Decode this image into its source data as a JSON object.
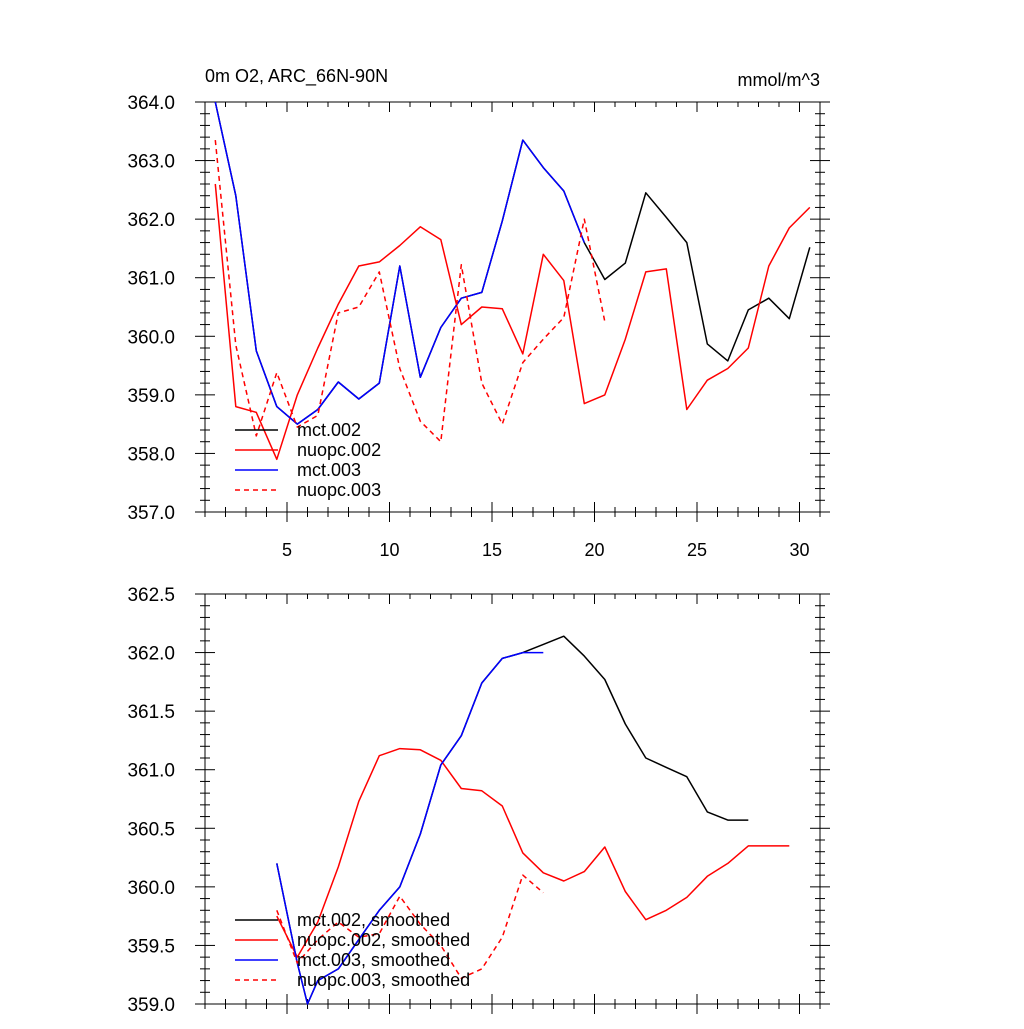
{
  "chart_data": [
    {
      "type": "line",
      "title": "0m O2, ARC_66N-90N",
      "unit_label": "mmol/m^3",
      "xlim": [
        1,
        31
      ],
      "ylim": [
        357.0,
        364.0
      ],
      "x_ticks": [
        5,
        10,
        15,
        20,
        25,
        30
      ],
      "y_ticks": [
        357.0,
        358.0,
        359.0,
        360.0,
        361.0,
        362.0,
        363.0,
        364.0
      ],
      "legend_position": "bottom-left",
      "series": [
        {
          "name": "mct.002",
          "color": "#000000",
          "dash": "solid",
          "x": [
            1.5,
            2.5,
            3.5,
            4.5,
            5.5,
            6.5,
            7.5,
            8.5,
            9.5,
            10.5,
            11.5,
            12.5,
            13.5,
            14.5,
            15.5,
            16.5,
            17.5,
            18.5,
            19.5,
            20.5,
            21.5,
            22.5,
            23.5,
            24.5,
            25.5,
            26.5,
            27.5,
            28.5,
            29.5,
            30.5
          ],
          "y": [
            364.0,
            362.4,
            359.75,
            358.8,
            358.5,
            358.75,
            359.22,
            358.93,
            359.2,
            361.2,
            359.3,
            360.15,
            360.65,
            360.75,
            361.97,
            363.35,
            362.88,
            362.48,
            361.6,
            360.97,
            361.25,
            362.45,
            362.03,
            361.6,
            359.87,
            359.58,
            360.45,
            360.65,
            360.3,
            361.52
          ]
        },
        {
          "name": "nuopc.002",
          "color": "#ff0000",
          "dash": "solid",
          "x": [
            1.5,
            2.5,
            3.5,
            4.5,
            5.5,
            6.5,
            7.5,
            8.5,
            9.5,
            10.5,
            11.5,
            12.5,
            13.5,
            14.5,
            15.5,
            16.5,
            17.5,
            18.5,
            19.5,
            20.5,
            21.5,
            22.5,
            23.5,
            24.5,
            25.5,
            26.5,
            27.5,
            28.5,
            29.5,
            30.5
          ],
          "y": [
            362.6,
            358.8,
            358.7,
            357.9,
            359.0,
            359.8,
            360.55,
            361.2,
            361.27,
            361.55,
            361.87,
            361.65,
            360.2,
            360.5,
            360.47,
            359.7,
            361.4,
            360.95,
            358.85,
            359.0,
            359.95,
            361.1,
            361.15,
            358.75,
            359.25,
            359.45,
            359.8,
            361.2,
            361.85,
            362.2
          ]
        },
        {
          "name": "mct.003",
          "color": "#0000ff",
          "dash": "solid",
          "x": [
            1.5,
            2.5,
            3.5,
            4.5,
            5.5,
            6.5,
            7.5,
            8.5,
            9.5,
            10.5,
            11.5,
            12.5,
            13.5,
            14.5,
            15.5,
            16.5,
            17.5,
            18.5,
            19.5
          ],
          "y": [
            364.0,
            362.4,
            359.75,
            358.8,
            358.5,
            358.75,
            359.22,
            358.93,
            359.2,
            361.2,
            359.3,
            360.15,
            360.65,
            360.75,
            361.97,
            363.35,
            362.88,
            362.48,
            361.6
          ]
        },
        {
          "name": "nuopc.003",
          "color": "#ff0000",
          "dash": "dashed",
          "x": [
            1.5,
            2.5,
            3.5,
            4.5,
            5.5,
            6.5,
            7.5,
            8.5,
            9.5,
            10.5,
            11.5,
            12.5,
            13.5,
            14.5,
            15.5,
            16.5,
            17.5,
            18.5,
            19.5,
            20.5
          ],
          "y": [
            363.35,
            359.85,
            358.3,
            359.38,
            358.45,
            358.65,
            360.4,
            360.5,
            361.1,
            359.45,
            358.55,
            358.2,
            361.22,
            359.2,
            358.5,
            359.55,
            359.95,
            360.32,
            362.0,
            360.25
          ]
        }
      ]
    },
    {
      "type": "line",
      "xlim": [
        1,
        31
      ],
      "ylim": [
        359.0,
        362.5
      ],
      "x_ticks": [
        5,
        10,
        15,
        20,
        25,
        30
      ],
      "y_ticks": [
        359.0,
        359.5,
        360.0,
        360.5,
        361.0,
        361.5,
        362.0,
        362.5
      ],
      "legend_position": "bottom-left",
      "series": [
        {
          "name": "mct.002, smoothed",
          "color": "#000000",
          "dash": "solid",
          "x": [
            4.5,
            5.5,
            6.0,
            6.5,
            7.5,
            8.5,
            9.5,
            10.5,
            11.5,
            12.5,
            13.5,
            14.5,
            15.5,
            16.5,
            17.5,
            18.5,
            19.5,
            20.5,
            21.5,
            22.5,
            23.5,
            24.5,
            25.5,
            26.5,
            27.5
          ],
          "y": [
            360.2,
            359.35,
            359.0,
            359.2,
            359.3,
            359.55,
            359.8,
            360.0,
            360.45,
            361.04,
            361.29,
            361.74,
            361.95,
            362.0,
            362.07,
            362.14,
            361.97,
            361.77,
            361.39,
            361.1,
            361.02,
            360.94,
            360.64,
            360.57,
            360.57
          ]
        },
        {
          "name": "nuopc.002, smoothed",
          "color": "#ff0000",
          "dash": "solid",
          "x": [
            4.5,
            5.5,
            6.5,
            7.5,
            8.5,
            9.5,
            10.5,
            11.5,
            12.5,
            13.5,
            14.5,
            15.5,
            16.5,
            17.5,
            18.5,
            19.5,
            20.5,
            21.5,
            22.5,
            23.5,
            24.5,
            25.5,
            26.5,
            27.5,
            28.5,
            29.5
          ],
          "y": [
            359.75,
            359.4,
            359.7,
            360.17,
            360.73,
            361.12,
            361.18,
            361.17,
            361.08,
            360.84,
            360.82,
            360.69,
            360.29,
            360.12,
            360.05,
            360.13,
            360.34,
            359.96,
            359.72,
            359.8,
            359.91,
            360.09,
            360.2,
            360.35,
            360.35,
            360.35
          ]
        },
        {
          "name": "mct.003, smoothed",
          "color": "#0000ff",
          "dash": "solid",
          "x": [
            4.5,
            5.5,
            6.0,
            6.5,
            7.5,
            8.5,
            9.5,
            10.5,
            11.5,
            12.5,
            13.5,
            14.5,
            15.5,
            16.5,
            17.5
          ],
          "y": [
            360.2,
            359.35,
            359.0,
            359.2,
            359.3,
            359.55,
            359.8,
            360.0,
            360.45,
            361.04,
            361.29,
            361.74,
            361.95,
            362.0,
            362.0
          ]
        },
        {
          "name": "nuopc.003, smoothed",
          "color": "#ff0000",
          "dash": "dashed",
          "x": [
            4.5,
            5.5,
            6.5,
            7.5,
            8.5,
            9.5,
            10.5,
            11.5,
            12.5,
            13.5,
            14.5,
            15.5,
            16.5,
            17.5
          ],
          "y": [
            359.8,
            359.35,
            359.55,
            359.7,
            359.57,
            359.6,
            359.92,
            359.68,
            359.5,
            359.22,
            359.3,
            359.57,
            360.1,
            359.95
          ]
        }
      ]
    }
  ]
}
